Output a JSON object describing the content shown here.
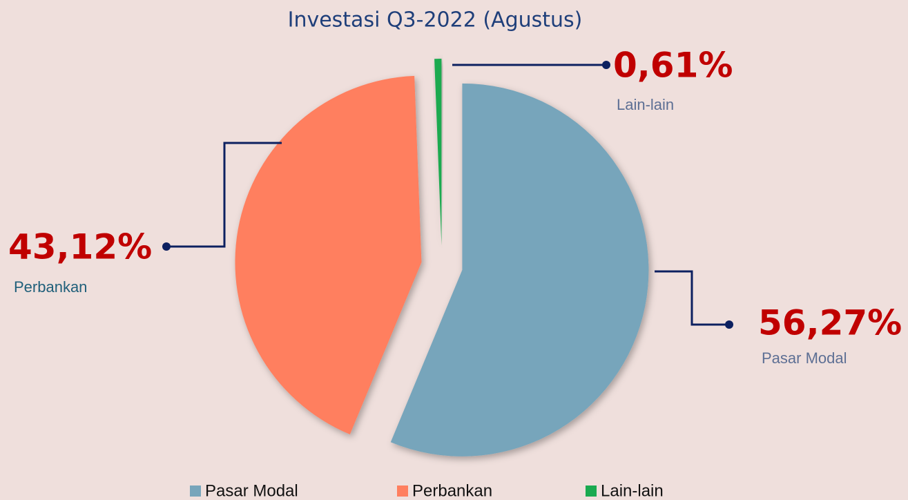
{
  "chart_data": {
    "type": "pie",
    "title": "Investasi Q3-2022 (Agustus)",
    "categories": [
      "Pasar Modal",
      "Perbankan",
      "Lain-lain"
    ],
    "values": [
      56.27,
      43.12,
      0.61
    ],
    "value_labels": [
      "56,27%",
      "43,12%",
      "0,61%"
    ],
    "colors": [
      "#77a5bb",
      "#ff7f5f",
      "#1aaa50"
    ],
    "legend": "bottom"
  }
}
